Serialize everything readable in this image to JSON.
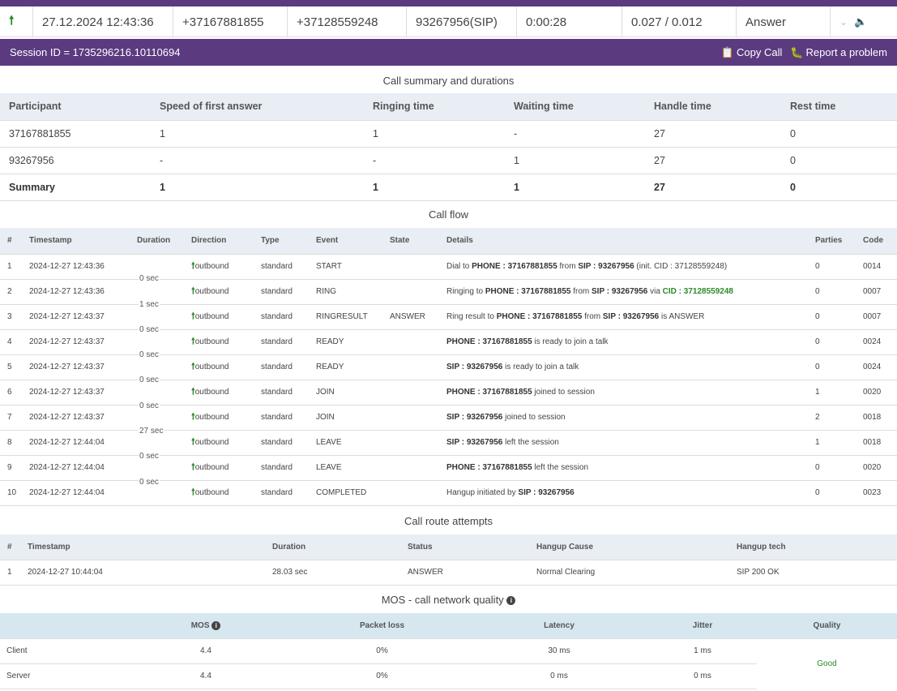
{
  "call_row": {
    "direction_icon": "arrow-up-icon",
    "datetime": "27.12.2024 12:43:36",
    "from": "+37167881855",
    "to": "+37128559248",
    "ext": "93267956(SIP)",
    "duration": "0:00:28",
    "cost": "0.027 / 0.012",
    "status": "Answer"
  },
  "session": {
    "id_text": "Session ID = 1735296216.10110694",
    "copy_label": "Copy Call",
    "report_label": "Report a problem"
  },
  "summary": {
    "title": "Call summary and durations",
    "headers": [
      "Participant",
      "Speed of first answer",
      "Ringing time",
      "Waiting time",
      "Handle time",
      "Rest time"
    ],
    "rows": [
      [
        "37167881855",
        "1",
        "1",
        "-",
        "27",
        "0"
      ],
      [
        "93267956",
        "-",
        "-",
        "1",
        "27",
        "0"
      ],
      [
        "Summary",
        "1",
        "1",
        "1",
        "27",
        "0"
      ]
    ]
  },
  "flow": {
    "title": "Call flow",
    "headers": [
      "#",
      "Timestamp",
      "Duration",
      "Direction",
      "Type",
      "Event",
      "State",
      "Details",
      "Parties",
      "Code"
    ],
    "rows": [
      {
        "n": "1",
        "ts": "2024-12-27 12:43:36",
        "dir": "outbound",
        "type": "standard",
        "event": "START",
        "state": "",
        "parties": "0",
        "code": "0014"
      },
      {
        "n": "2",
        "ts": "2024-12-27 12:43:36",
        "dir": "outbound",
        "type": "standard",
        "event": "RING",
        "state": "",
        "parties": "0",
        "code": "0007"
      },
      {
        "n": "3",
        "ts": "2024-12-27 12:43:37",
        "dir": "outbound",
        "type": "standard",
        "event": "RINGRESULT",
        "state": "ANSWER",
        "parties": "0",
        "code": "0007"
      },
      {
        "n": "4",
        "ts": "2024-12-27 12:43:37",
        "dir": "outbound",
        "type": "standard",
        "event": "READY",
        "state": "",
        "parties": "0",
        "code": "0024"
      },
      {
        "n": "5",
        "ts": "2024-12-27 12:43:37",
        "dir": "outbound",
        "type": "standard",
        "event": "READY",
        "state": "",
        "parties": "0",
        "code": "0024"
      },
      {
        "n": "6",
        "ts": "2024-12-27 12:43:37",
        "dir": "outbound",
        "type": "standard",
        "event": "JOIN",
        "state": "",
        "parties": "1",
        "code": "0020"
      },
      {
        "n": "7",
        "ts": "2024-12-27 12:43:37",
        "dir": "outbound",
        "type": "standard",
        "event": "JOIN",
        "state": "",
        "parties": "2",
        "code": "0018"
      },
      {
        "n": "8",
        "ts": "2024-12-27 12:44:04",
        "dir": "outbound",
        "type": "standard",
        "event": "LEAVE",
        "state": "",
        "parties": "1",
        "code": "0018"
      },
      {
        "n": "9",
        "ts": "2024-12-27 12:44:04",
        "dir": "outbound",
        "type": "standard",
        "event": "LEAVE",
        "state": "",
        "parties": "0",
        "code": "0020"
      },
      {
        "n": "10",
        "ts": "2024-12-27 12:44:04",
        "dir": "outbound",
        "type": "standard",
        "event": "COMPLETED",
        "state": "",
        "parties": "0",
        "code": "0023"
      }
    ],
    "details": {
      "d1_a": "Dial to ",
      "d1_b": "PHONE : 37167881855",
      "d1_c": " from ",
      "d1_d": "SIP : 93267956",
      "d1_e": " (init. CID : 37128559248)",
      "d2_a": "Ringing to ",
      "d2_b": "PHONE : 37167881855",
      "d2_c": " from ",
      "d2_d": "SIP : 93267956",
      "d2_e": " via ",
      "d2_f": "CID : 37128559248",
      "d3_a": "Ring result to ",
      "d3_b": "PHONE : 37167881855",
      "d3_c": " from ",
      "d3_d": "SIP : 93267956",
      "d3_e": " is ANSWER",
      "d4_b": "PHONE : 37167881855",
      "d4_e": " is ready to join a talk",
      "d5_b": "SIP : 93267956",
      "d5_e": " is ready to join a talk",
      "d6_b": "PHONE : 37167881855",
      "d6_e": " joined to session",
      "d7_b": "SIP : 93267956",
      "d7_e": " joined to session",
      "d8_b": "SIP : 93267956",
      "d8_e": " left the session",
      "d9_b": "PHONE : 37167881855",
      "d9_e": " left the session",
      "d10_a": "Hangup initiated by ",
      "d10_b": "SIP : 93267956"
    },
    "gaps": [
      "0 sec",
      "1 sec",
      "0 sec",
      "0 sec",
      "0 sec",
      "0 sec",
      "27 sec",
      "0 sec",
      "0 sec"
    ]
  },
  "route": {
    "title": "Call route attempts",
    "headers": [
      "#",
      "Timestamp",
      "Duration",
      "Status",
      "Hangup Cause",
      "Hangup tech"
    ],
    "rows": [
      [
        "1",
        "2024-12-27 10:44:04",
        "28.03 sec",
        "ANSWER",
        "Normal Clearing",
        "SIP 200 OK"
      ]
    ]
  },
  "mos": {
    "title": "MOS - call network quality",
    "headers": [
      "",
      "MOS",
      "Packet loss",
      "Latency",
      "Jitter",
      "Quality"
    ],
    "rows": [
      [
        "Client",
        "4.4",
        "0%",
        "30 ms",
        "1 ms"
      ],
      [
        "Server",
        "4.4",
        "0%",
        "0 ms",
        "0 ms"
      ]
    ],
    "quality": "Good",
    "quality_color": "#2a8a2a"
  },
  "colors": {
    "brand": "#5b3a80",
    "header_bg": "#e8eef4",
    "positive": "#2a8a2a"
  }
}
